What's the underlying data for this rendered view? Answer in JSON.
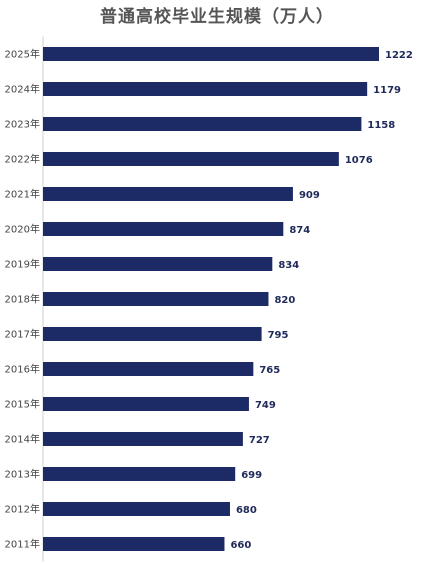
{
  "chart_data": {
    "type": "bar",
    "orientation": "horizontal",
    "title": "普通高校毕业生规模（万人）",
    "categories": [
      "2025年",
      "2024年",
      "2023年",
      "2022年",
      "2021年",
      "2020年",
      "2019年",
      "2018年",
      "2017年",
      "2016年",
      "2015年",
      "2014年",
      "2013年",
      "2012年",
      "2011年"
    ],
    "values": [
      1222,
      1179,
      1158,
      1076,
      909,
      874,
      834,
      820,
      795,
      765,
      749,
      727,
      699,
      680,
      660
    ],
    "xlim": [
      0,
      1222
    ],
    "grid": false,
    "legend": "none",
    "bar_color": "#1c2a66"
  }
}
